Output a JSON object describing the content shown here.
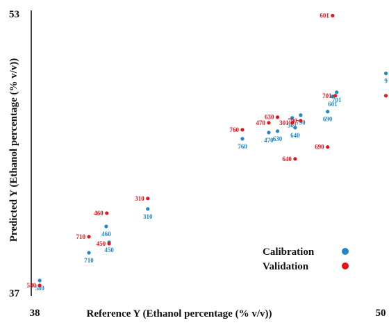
{
  "chart_data": {
    "type": "scatter",
    "x_label": "Reference Y (Ethanol percentage (% v/v))",
    "y_label": "Predicted Y (Ethanol percentage (% v/v))",
    "xlim": [
      38,
      50
    ],
    "xticks": [
      38,
      50
    ],
    "ylim": [
      37,
      53
    ],
    "yticks": [
      37,
      53
    ],
    "legend": "lower right",
    "series": [
      {
        "name": "Calibration",
        "color": "#1f86c8",
        "x": [
          38.17,
          39.85,
          40.54,
          40.44,
          41.86,
          45.09,
          45.99,
          46.29,
          46.89,
          46.79,
          47.08,
          48.0,
          48.17,
          48.31,
          49.99
        ],
        "values": [
          37.72,
          39.31,
          39.91,
          40.82,
          41.82,
          45.84,
          46.2,
          46.28,
          46.48,
          47.04,
          47.2,
          47.4,
          48.27,
          48.51,
          49.59
        ],
        "labels": [
          "580",
          "710",
          "450",
          "460",
          "310",
          "760",
          "470",
          "630",
          "640",
          "301",
          "790",
          "690",
          "601",
          "701",
          "9"
        ]
      },
      {
        "name": "Validation",
        "color": "#e8141c",
        "x": [
          38.17,
          39.85,
          40.54,
          40.46,
          41.86,
          45.09,
          45.99,
          46.29,
          46.79,
          47.08,
          46.89,
          48.0,
          48.17,
          48.26,
          49.99
        ],
        "values": [
          37.44,
          40.23,
          39.83,
          41.58,
          42.42,
          46.36,
          46.76,
          47.08,
          46.76,
          46.88,
          44.69,
          45.37,
          52.9,
          48.31,
          48.31
        ],
        "labels": [
          "580",
          "710",
          "450",
          "460",
          "310",
          "760",
          "470",
          "630",
          "301",
          "790",
          "640",
          "690",
          "601",
          "701",
          null
        ]
      }
    ]
  }
}
